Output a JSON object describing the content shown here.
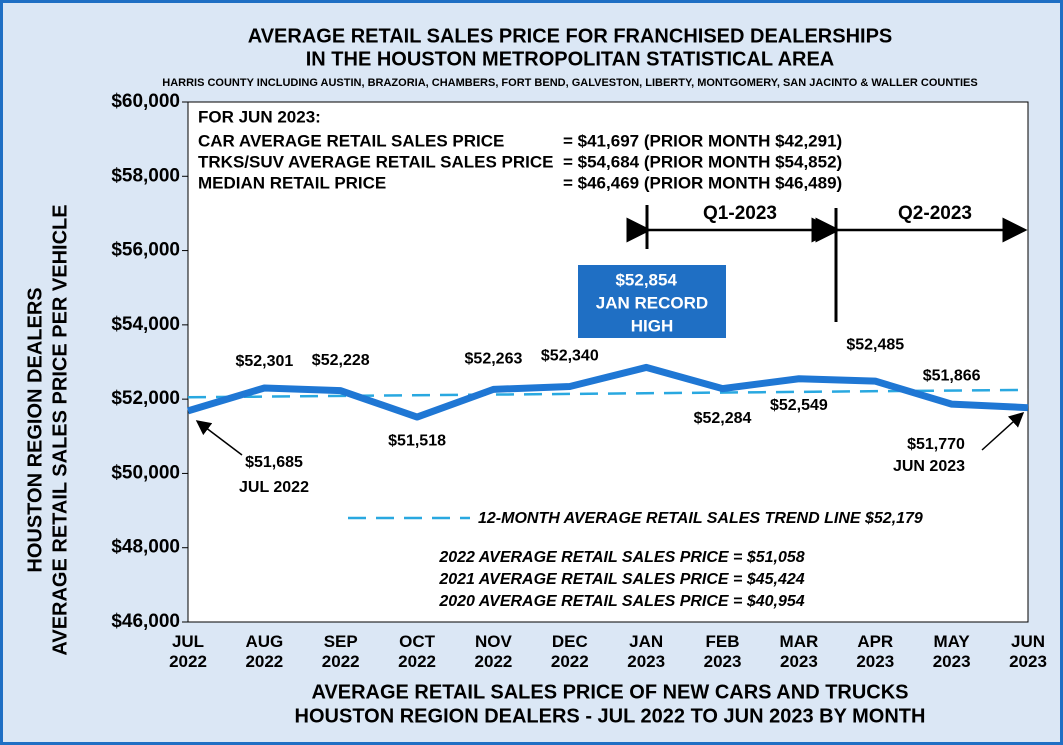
{
  "chart_data": {
    "type": "line",
    "title": [
      "AVERAGE RETAIL SALES PRICE FOR FRANCHISED DEALERSHIPS",
      "IN THE HOUSTON METROPOLITAN STATISTICAL AREA"
    ],
    "subtitle": "HARRIS COUNTY INCLUDING AUSTIN, BRAZORIA, CHAMBERS, FORT BEND, GALVESTON, LIBERTY, MONTGOMERY, SAN JACINTO & WALLER COUNTIES",
    "y_axis_label": [
      "HOUSTON REGION DEALERS",
      "AVERAGE RETAIL SALES PRICE PER VEHICLE"
    ],
    "x_axis_label": [
      "AVERAGE RETAIL SALES PRICE OF NEW CARS AND TRUCKS",
      "HOUSTON REGION DEALERS - JUL 2022 TO JUN 2023 BY MONTH"
    ],
    "categories": [
      "JUL 2022",
      "AUG 2022",
      "SEP 2022",
      "OCT 2022",
      "NOV 2022",
      "DEC 2022",
      "JAN 2023",
      "FEB 2023",
      "MAR 2023",
      "APR 2023",
      "MAY 2023",
      "JUN 2023"
    ],
    "series": [
      {
        "name": "Average retail sales price",
        "color": "#1f77d4",
        "values": [
          51685,
          52301,
          52228,
          51518,
          52263,
          52340,
          52854,
          52284,
          52549,
          52485,
          51866,
          51770
        ],
        "value_labels": [
          "$51,685",
          "$52,301",
          "$52,228",
          "$51,518",
          "$52,263",
          "$52,340",
          "$52,854",
          "$52,284",
          "$52,549",
          "$52,485",
          "$51,866",
          "$51,770"
        ]
      }
    ],
    "trend_line": {
      "label": "12-MONTH AVERAGE RETAIL SALES TREND LINE $52,179",
      "color": "#29a8e0",
      "values": [
        52050,
        52250
      ]
    },
    "ylim": [
      46000,
      60000
    ],
    "yticks": [
      {
        "value": 46000,
        "label": "$46,000"
      },
      {
        "value": 48000,
        "label": "$48,000"
      },
      {
        "value": 50000,
        "label": "$50,000"
      },
      {
        "value": 52000,
        "label": "$52,000"
      },
      {
        "value": 54000,
        "label": "$54,000"
      },
      {
        "value": 56000,
        "label": "$56,000"
      },
      {
        "value": 58000,
        "label": "$58,000"
      },
      {
        "value": 60000,
        "label": "$60,000"
      }
    ],
    "annotations": {
      "info_header": "FOR JUN 2023:",
      "info_rows": [
        [
          "CAR AVERAGE RETAIL SALES PRICE",
          "= $41,697 (PRIOR MONTH $42,291)"
        ],
        [
          "TRKS/SUV AVERAGE RETAIL SALES PRICE",
          "= $54,684 (PRIOR MONTH $54,852)"
        ],
        [
          "MEDIAN RETAIL PRICE",
          "= $46,469 (PRIOR MONTH $46,489)"
        ]
      ],
      "q1": "Q1-2023",
      "q2": "Q2-2023",
      "record_note": [
        "JAN RECORD",
        "HIGH"
      ],
      "first_point_note": "JUL 2022",
      "last_point_note": "JUN 2023",
      "averages": [
        "2022 AVERAGE RETAIL SALES PRICE = $51,058",
        "2021 AVERAGE RETAIL SALES PRICE = $45,424",
        "2020 AVERAGE RETAIL SALES PRICE = $40,954"
      ]
    }
  }
}
